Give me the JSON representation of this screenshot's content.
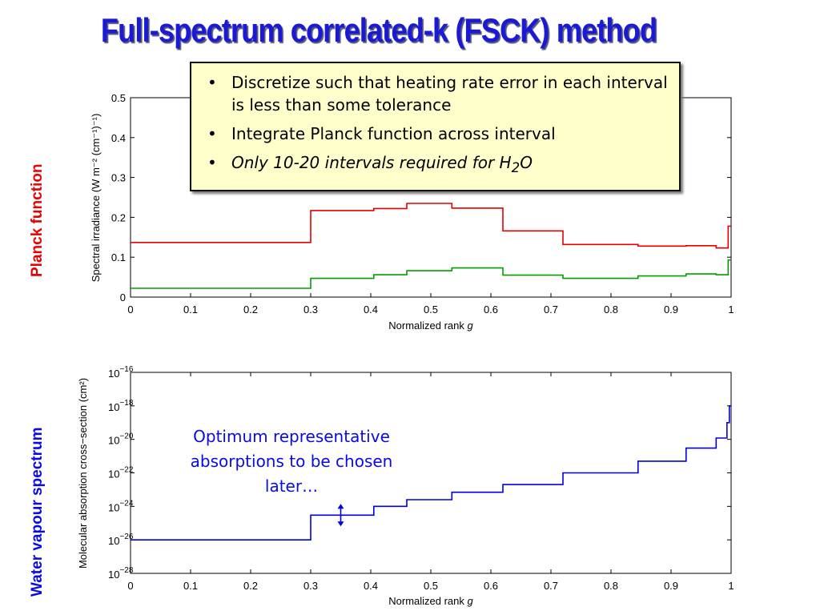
{
  "slide": {
    "title": "Full-spectrum correlated-k (FSCK) method",
    "side_labels": {
      "top": "Planck function",
      "bottom": "Water vapour spectrum"
    },
    "note_box": {
      "bullets": [
        "Discretize such that heating rate error in each interval is less than some tolerance",
        "Integrate Planck function across interval"
      ],
      "bullet3_text": "Only 10-20 intervals required for H",
      "bullet3_sub": "2",
      "bullet3_tail": "O"
    },
    "callout": "Optimum representative absorptions to be chosen later…"
  },
  "colors": {
    "title": "#1a1ad6",
    "planck_label": "#e60000",
    "water_label": "#0a0ae6",
    "series_red": "#e60000",
    "series_green": "#00a000",
    "series_blue": "#0000e0"
  },
  "chart_data": [
    {
      "type": "line",
      "step": true,
      "xlabel_text": "Normalized rank ",
      "xlabel_var": "g",
      "ylabel": "Spectral irradiance (W m⁻² (cm⁻¹)⁻¹)",
      "xlim": [
        0,
        1
      ],
      "ylim": [
        0,
        0.5
      ],
      "xticks": [
        0,
        0.1,
        0.2,
        0.3,
        0.4,
        0.5,
        0.6,
        0.7,
        0.8,
        0.9,
        1
      ],
      "xtick_labels": [
        "0",
        "0.1",
        "0.2",
        "0.3",
        "0.4",
        "0.5",
        "0.6",
        "0.7",
        "0.8",
        "0.9",
        "1"
      ],
      "yticks": [
        0,
        0.1,
        0.2,
        0.3,
        0.4,
        0.5
      ],
      "ytick_labels": [
        "0",
        "0.1",
        "0.2",
        "0.3",
        "0.4",
        "0.5"
      ],
      "grid": false,
      "series": [
        {
          "color": "red",
          "edges": [
            0,
            0.3,
            0.405,
            0.46,
            0.535,
            0.62,
            0.72,
            0.845,
            0.925,
            0.975,
            0.995,
            1
          ],
          "values": [
            0.137,
            0.217,
            0.222,
            0.235,
            0.223,
            0.166,
            0.132,
            0.128,
            0.129,
            0.123,
            0.178
          ]
        },
        {
          "color": "green",
          "edges": [
            0,
            0.3,
            0.405,
            0.46,
            0.535,
            0.62,
            0.72,
            0.845,
            0.925,
            0.975,
            0.995,
            1
          ],
          "values": [
            0.022,
            0.047,
            0.056,
            0.066,
            0.073,
            0.055,
            0.047,
            0.053,
            0.058,
            0.056,
            0.093
          ]
        }
      ]
    },
    {
      "type": "line",
      "step": true,
      "yscale": "log",
      "xlabel_text": "Normalized rank ",
      "xlabel_var": "g",
      "ylabel": "Molecular absorption cross−section (cm²)",
      "xlim": [
        0,
        1
      ],
      "ylim": [
        1e-28,
        1e-16
      ],
      "xticks": [
        0,
        0.1,
        0.2,
        0.3,
        0.4,
        0.5,
        0.6,
        0.7,
        0.8,
        0.9,
        1
      ],
      "xtick_labels": [
        "0",
        "0.1",
        "0.2",
        "0.3",
        "0.4",
        "0.5",
        "0.6",
        "0.7",
        "0.8",
        "0.9",
        "1"
      ],
      "ytick_exponents": [
        -16,
        -18,
        -20,
        -22,
        -24,
        -26,
        -28
      ],
      "ytick_base": "10",
      "grid": false,
      "annotation": "double-headed arrow near g = 0.35",
      "series": [
        {
          "color": "blue",
          "edges": [
            0,
            0.3,
            0.405,
            0.46,
            0.535,
            0.62,
            0.72,
            0.845,
            0.925,
            0.975,
            0.993,
            0.997,
            1
          ],
          "values": [
            1e-26,
            3e-25,
            1e-24,
            2.5e-24,
            7e-24,
            2e-23,
            1e-22,
            5e-22,
            3e-21,
            1.2e-20,
            1e-19,
            1e-18
          ]
        }
      ]
    }
  ]
}
